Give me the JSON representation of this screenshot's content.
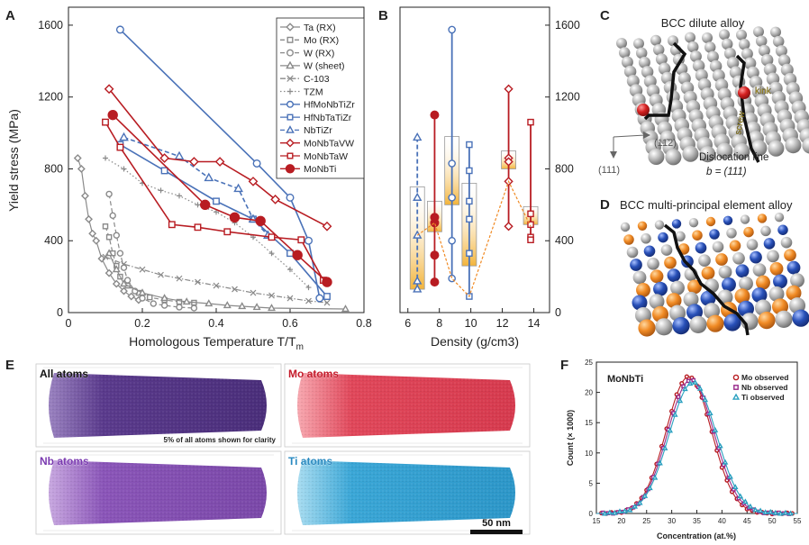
{
  "panel_labels": {
    "a": "A",
    "b": "B",
    "c": "C",
    "d": "D",
    "e": "E",
    "f": "F"
  },
  "colors": {
    "blue": "#4a72b8",
    "red": "#b81c22",
    "gray": "#8a8a8a",
    "orange": "#f08a24",
    "yellowbar": "#f6c44c"
  },
  "chart_data": [
    {
      "id": "A",
      "type": "line",
      "title": "",
      "xlabel_main": "Homologous Temperature T/T",
      "xlabel_sub": "m",
      "ylabel": "Yield stress (MPa)",
      "xlim": [
        0,
        0.8
      ],
      "ylim": [
        0,
        1700
      ],
      "xticks": [
        0,
        0.2,
        0.4,
        0.6,
        0.8
      ],
      "xtick_labels": [
        "0",
        "0.2",
        "0.4",
        "0.6",
        "0.8"
      ],
      "yticks": [
        0,
        400,
        800,
        1200,
        1600
      ],
      "ytick_labels": [
        "0",
        "400",
        "800",
        "1200",
        "1600"
      ],
      "series": [
        {
          "name": "Ta (RX)",
          "color": "#8a8a8a",
          "marker": "diamond",
          "dash": "solid",
          "filled": false,
          "x": [
            0.025,
            0.035,
            0.045,
            0.055,
            0.065,
            0.075,
            0.09,
            0.11,
            0.13,
            0.15,
            0.17,
            0.19
          ],
          "y": [
            860,
            800,
            650,
            520,
            440,
            400,
            300,
            220,
            160,
            120,
            90,
            70
          ]
        },
        {
          "name": "Mo (RX)",
          "color": "#8a8a8a",
          "marker": "square",
          "dash": "dash",
          "filled": false,
          "x": [
            0.1,
            0.11,
            0.12,
            0.13,
            0.14,
            0.16,
            0.19,
            0.22,
            0.26,
            0.3,
            0.34
          ],
          "y": [
            480,
            420,
            330,
            260,
            200,
            150,
            110,
            85,
            70,
            60,
            55
          ]
        },
        {
          "name": "W (RX)",
          "color": "#8a8a8a",
          "marker": "circle",
          "dash": "dash",
          "filled": false,
          "x": [
            0.11,
            0.12,
            0.13,
            0.14,
            0.15,
            0.16,
            0.18,
            0.2,
            0.23,
            0.26,
            0.3,
            0.34
          ],
          "y": [
            660,
            540,
            430,
            330,
            250,
            180,
            120,
            80,
            50,
            40,
            30,
            25
          ]
        },
        {
          "name": "W (sheet)",
          "color": "#8a8a8a",
          "marker": "triangle",
          "dash": "solid",
          "filled": false,
          "x": [
            0.11,
            0.13,
            0.15,
            0.2,
            0.26,
            0.32,
            0.38,
            0.43,
            0.47,
            0.51,
            0.55,
            0.75
          ],
          "y": [
            330,
            240,
            160,
            110,
            80,
            60,
            50,
            40,
            35,
            30,
            25,
            20
          ]
        },
        {
          "name": "C-103",
          "color": "#8a8a8a",
          "marker": "x",
          "dash": "dashdot",
          "filled": false,
          "x": [
            0.1,
            0.15,
            0.2,
            0.25,
            0.3,
            0.35,
            0.4,
            0.45,
            0.5,
            0.55,
            0.6,
            0.65,
            0.7
          ],
          "y": [
            310,
            270,
            240,
            210,
            190,
            170,
            150,
            130,
            110,
            95,
            80,
            65,
            55
          ]
        },
        {
          "name": "TZM",
          "color": "#8a8a8a",
          "marker": "plus",
          "dash": "dot",
          "filled": false,
          "x": [
            0.1,
            0.15,
            0.2,
            0.25,
            0.3,
            0.35,
            0.4,
            0.45,
            0.5,
            0.55,
            0.6,
            0.65
          ],
          "y": [
            860,
            800,
            720,
            680,
            650,
            600,
            560,
            500,
            420,
            330,
            240,
            140
          ]
        },
        {
          "name": "HfMoNbTiZr",
          "color": "#4a72b8",
          "marker": "circle",
          "dash": "solid",
          "filled": false,
          "x": [
            0.14,
            0.51,
            0.6,
            0.65,
            0.68
          ],
          "y": [
            1575,
            830,
            640,
            400,
            80
          ]
        },
        {
          "name": "HfNbTaTiZr",
          "color": "#4a72b8",
          "marker": "square",
          "dash": "solid",
          "filled": false,
          "x": [
            0.14,
            0.26,
            0.4,
            0.5,
            0.6,
            0.7
          ],
          "y": [
            935,
            790,
            620,
            520,
            330,
            90
          ]
        },
        {
          "name": "NbTiZr",
          "color": "#4a72b8",
          "marker": "triangle",
          "dash": "dash",
          "filled": false,
          "x": [
            0.15,
            0.3,
            0.38,
            0.46,
            0.5,
            0.54
          ],
          "y": [
            975,
            870,
            750,
            690,
            520,
            430
          ]
        },
        {
          "name": "MoNbTaVW",
          "color": "#b81c22",
          "marker": "diamond",
          "dash": "solid",
          "filled": false,
          "x": [
            0.11,
            0.26,
            0.34,
            0.41,
            0.5,
            0.56,
            0.7
          ],
          "y": [
            1245,
            860,
            840,
            840,
            730,
            630,
            480
          ]
        },
        {
          "name": "MoNbTaW",
          "color": "#b81c22",
          "marker": "square",
          "dash": "solid",
          "filled": false,
          "x": [
            0.1,
            0.14,
            0.28,
            0.35,
            0.43,
            0.55,
            0.63,
            0.69
          ],
          "y": [
            1060,
            920,
            490,
            475,
            450,
            420,
            405,
            180
          ]
        },
        {
          "name": "MoNbTi",
          "color": "#b81c22",
          "marker": "circle",
          "dash": "solid",
          "filled": true,
          "x": [
            0.12,
            0.37,
            0.45,
            0.52,
            0.62,
            0.7
          ],
          "y": [
            1100,
            600,
            530,
            510,
            320,
            170
          ]
        }
      ]
    },
    {
      "id": "B",
      "type": "range",
      "xlabel": "Density (g/cm3)",
      "ylabel": "",
      "xlim": [
        5.5,
        15
      ],
      "ylim": [
        0,
        1700
      ],
      "xticks": [
        6,
        8,
        10,
        12,
        14
      ],
      "xtick_labels": [
        "6",
        "8",
        "10",
        "12",
        "14"
      ],
      "yticks": [
        0,
        400,
        800,
        1200,
        1600
      ],
      "ytick_labels": [
        "0",
        "400",
        "800",
        "1200",
        "1600"
      ],
      "groups": [
        {
          "alloy": "NbTiZr",
          "density": 6.6,
          "color": "#4a72b8",
          "marker": "triangle",
          "dash": "dash",
          "filled": false,
          "values": [
            975,
            640,
            430,
            175,
            130
          ],
          "box": [
            130,
            700
          ]
        },
        {
          "alloy": "MoNbTi",
          "density": 7.7,
          "color": "#b81c22",
          "marker": "circle",
          "dash": "solid",
          "filled": true,
          "values": [
            1100,
            530,
            500,
            320,
            170
          ],
          "box": [
            450,
            620
          ]
        },
        {
          "alloy": "HfMoNbTiZr",
          "density": 8.8,
          "color": "#4a72b8",
          "marker": "circle",
          "dash": "solid",
          "filled": false,
          "values": [
            1575,
            830,
            640,
            400,
            190
          ],
          "box": [
            600,
            980
          ]
        },
        {
          "alloy": "HfNbTaTiZr",
          "density": 9.9,
          "color": "#4a72b8",
          "marker": "square",
          "dash": "solid",
          "filled": false,
          "values": [
            935,
            790,
            620,
            520,
            330,
            90
          ],
          "box": [
            260,
            720
          ]
        },
        {
          "alloy": "MoNbTaVW",
          "density": 12.4,
          "color": "#b81c22",
          "marker": "diamond",
          "dash": "solid",
          "filled": false,
          "values": [
            1245,
            860,
            840,
            730,
            480
          ],
          "box": [
            800,
            900
          ]
        },
        {
          "alloy": "MoNbTaW",
          "density": 13.8,
          "color": "#b81c22",
          "marker": "square",
          "dash": "solid",
          "filled": false,
          "values": [
            1060,
            550,
            490,
            420,
            405
          ],
          "box": [
            490,
            590
          ]
        }
      ],
      "trend": {
        "x": [
          6.6,
          7.7,
          8.8,
          9.9,
          12.4,
          13.8
        ],
        "y": [
          430,
          500,
          190,
          90,
          730,
          480
        ]
      }
    },
    {
      "id": "F",
      "type": "line",
      "title": "MoNbTi",
      "xlabel": "Concentration  (at.%)",
      "ylabel": "Count (× 1000)",
      "xlim": [
        15,
        55
      ],
      "ylim": [
        0,
        25
      ],
      "xticks": [
        15,
        20,
        25,
        30,
        35,
        40,
        45,
        50,
        55
      ],
      "xtick_labels": [
        "15",
        "20",
        "25",
        "30",
        "35",
        "40",
        "45",
        "50",
        "55"
      ],
      "yticks": [
        0,
        5,
        10,
        15,
        20,
        25
      ],
      "ytick_labels": [
        "0",
        "5",
        "10",
        "15",
        "20",
        "25"
      ],
      "series": [
        {
          "name": "Mo observed",
          "color": "#b81c22",
          "marker": "circle",
          "mean": 33.4,
          "sigma": 4.5,
          "peak": 22.6
        },
        {
          "name": "Nb observed",
          "color": "#9a2a8a",
          "marker": "square",
          "mean": 33.8,
          "sigma": 4.6,
          "peak": 22.1
        },
        {
          "name": "Ti observed",
          "color": "#2aa0c0",
          "marker": "triangle",
          "mean": 34.2,
          "sigma": 4.7,
          "peak": 21.6
        }
      ]
    }
  ],
  "panel_c": {
    "title": "BCC dilute alloy",
    "kink": "kink",
    "screw": "screw",
    "dislocation_line": "Dislocation line",
    "burgers": "b = (111)",
    "axis1": "(111)",
    "axis2": "(11̄2)"
  },
  "panel_d": {
    "title": "BCC multi-principal element alloy"
  },
  "panel_e": {
    "tiles": [
      {
        "label": "All atoms",
        "color": "#5a3a8c",
        "label_color": "#111111"
      },
      {
        "label": "Mo atoms",
        "color": "#e0475a",
        "label_color": "#c41a2a"
      },
      {
        "label": "Nb atoms",
        "color": "#8a55b8",
        "label_color": "#7a3ab0"
      },
      {
        "label": "Ti atoms",
        "color": "#3aa6d6",
        "label_color": "#2a8ac0"
      }
    ],
    "note": "5% of all atoms shown for clarity",
    "scalebar": "50 nm"
  }
}
